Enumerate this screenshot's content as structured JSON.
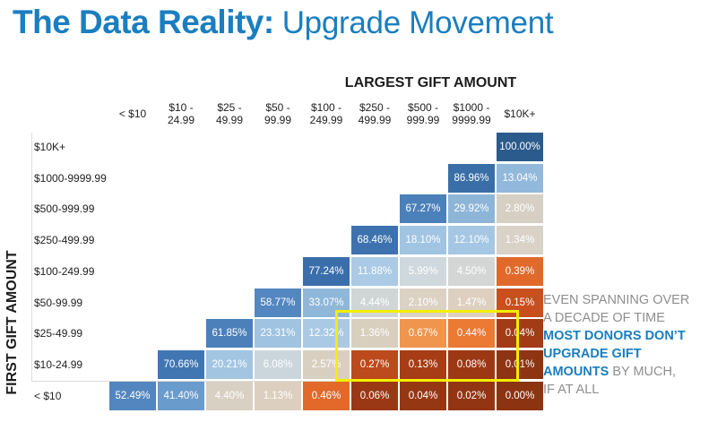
{
  "title": {
    "bold": "The Data Reality:",
    "light": "Upgrade Movement"
  },
  "note": {
    "line1": "EVEN SPANNING OVER",
    "line2": "A DECADE OF TIME",
    "line3": "MOST DONORS DON’T",
    "line4": "UPGRADE GIFT",
    "line5_bold": "AMOUNTS",
    "line5_rest": " BY MUCH,",
    "line6": "IF AT ALL"
  },
  "chart_data": {
    "type": "heatmap",
    "xlabel": "LARGEST GIFT AMOUNT",
    "ylabel": "FIRST GIFT AMOUNT",
    "columns": [
      [
        "< $10"
      ],
      [
        "$10 -",
        "24.99"
      ],
      [
        "$25 -",
        "49.99"
      ],
      [
        "$50 -",
        "99.99"
      ],
      [
        "$100 -",
        "249.99"
      ],
      [
        "$250 -",
        "499.99"
      ],
      [
        "$500 -",
        "999.99"
      ],
      [
        "$1000 -",
        "9999.99"
      ],
      [
        "$10K+"
      ]
    ],
    "rows": [
      "$10K+",
      "$1000-9999.99",
      "$500-999.99",
      "$250-499.99",
      "$100-249.99",
      "$50-99.99",
      "$25-49.99",
      "$10-24.99",
      "< $10"
    ],
    "values": [
      [
        null,
        null,
        null,
        null,
        null,
        null,
        null,
        null,
        100.0
      ],
      [
        null,
        null,
        null,
        null,
        null,
        null,
        null,
        86.96,
        13.04
      ],
      [
        null,
        null,
        null,
        null,
        null,
        null,
        67.27,
        29.92,
        2.8
      ],
      [
        null,
        null,
        null,
        null,
        null,
        68.46,
        18.1,
        12.1,
        1.34
      ],
      [
        null,
        null,
        null,
        null,
        77.24,
        11.88,
        5.99,
        4.5,
        0.39
      ],
      [
        null,
        null,
        null,
        58.77,
        33.07,
        4.44,
        2.1,
        1.47,
        0.15
      ],
      [
        null,
        null,
        61.85,
        23.31,
        12.32,
        1.36,
        0.67,
        0.44,
        0.04
      ],
      [
        null,
        70.66,
        20.21,
        6.08,
        2.57,
        0.27,
        0.13,
        0.08,
        0.01
      ],
      [
        52.49,
        41.4,
        4.4,
        1.13,
        0.46,
        0.06,
        0.04,
        0.02,
        0.0
      ]
    ],
    "cell_colors": [
      [
        null,
        null,
        null,
        null,
        null,
        null,
        null,
        null,
        "#2b5b8c"
      ],
      [
        null,
        null,
        null,
        null,
        null,
        null,
        null,
        "#3a6ea7",
        "#92b9db"
      ],
      [
        null,
        null,
        null,
        null,
        null,
        null,
        "#4c80b9",
        "#8db5d8",
        "#d6d0c4"
      ],
      [
        null,
        null,
        null,
        null,
        null,
        "#3d72ae",
        "#a0c4e2",
        "#a5c7e3",
        "#d8d2c7"
      ],
      [
        null,
        null,
        null,
        null,
        "#3a6fab",
        "#aacae5",
        "#cfd8dc",
        "#d3d6d4",
        "#e16a2b"
      ],
      [
        null,
        null,
        null,
        "#5387c1",
        "#8fb7d9",
        "#d0d6d6",
        "#dcd2c4",
        "#ddd0c1",
        "#c94f1e"
      ],
      [
        null,
        null,
        "#4b80bb",
        "#9fc3e1",
        "#a9c9e4",
        "#d9cfbf",
        "#f0954d",
        "#ea7a34",
        "#a23b16"
      ],
      [
        null,
        "#4077b3",
        "#a2c5e2",
        "#cbd6dc",
        "#d9cfc1",
        "#bd4a1c",
        "#a63d16",
        "#9c3915",
        "#8f3412"
      ],
      [
        "#5386bf",
        "#6a9bcd",
        "#d8d0c2",
        "#dccfbf",
        "#e2692a",
        "#9a3815",
        "#963714",
        "#923513",
        "#8c3312"
      ]
    ],
    "value_suffix": "%"
  }
}
